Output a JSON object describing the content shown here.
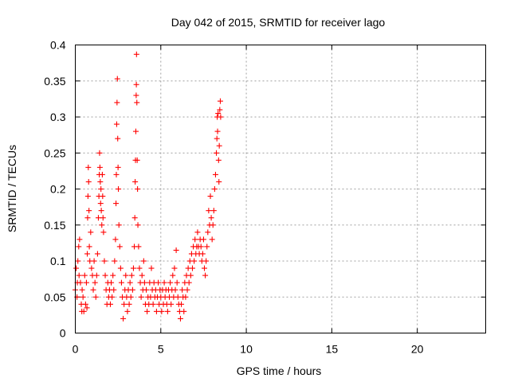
{
  "chart_data": {
    "type": "scatter",
    "title": "Day 042 of 2015, SRMTID for receiver lago",
    "xlabel": "GPS time / hours",
    "ylabel": "SRMTID / TECUs",
    "xlim": [
      0,
      24
    ],
    "ylim": [
      0,
      0.4
    ],
    "xticks": [
      0,
      5,
      10,
      15,
      20
    ],
    "xtick_labels": [
      "0",
      "5",
      "10",
      "15",
      "20"
    ],
    "yticks": [
      0,
      0.05,
      0.1,
      0.15,
      0.2,
      0.25,
      0.3,
      0.35,
      0.4
    ],
    "ytick_labels": [
      "0",
      "0.05",
      "0.1",
      "0.15",
      "0.2",
      "0.25",
      "0.3",
      "0.35",
      "0.4"
    ],
    "grid": true,
    "marker": "+",
    "color": "#ff0000",
    "series": [
      {
        "name": "SRMTID",
        "points": [
          [
            0.0,
            0.06
          ],
          [
            0.05,
            0.09
          ],
          [
            0.1,
            0.05
          ],
          [
            0.12,
            0.07
          ],
          [
            0.15,
            0.1
          ],
          [
            0.2,
            0.12
          ],
          [
            0.22,
            0.08
          ],
          [
            0.25,
            0.13
          ],
          [
            0.3,
            0.07
          ],
          [
            0.35,
            0.04
          ],
          [
            0.38,
            0.03
          ],
          [
            0.4,
            0.06
          ],
          [
            0.45,
            0.05
          ],
          [
            0.5,
            0.03
          ],
          [
            0.55,
            0.08
          ],
          [
            0.6,
            0.04
          ],
          [
            0.65,
            0.07
          ],
          [
            0.68,
            0.035
          ],
          [
            0.7,
            0.11
          ],
          [
            0.72,
            0.16
          ],
          [
            0.74,
            0.19
          ],
          [
            0.76,
            0.23
          ],
          [
            0.78,
            0.21
          ],
          [
            0.8,
            0.17
          ],
          [
            0.82,
            0.12
          ],
          [
            0.85,
            0.1
          ],
          [
            0.9,
            0.14
          ],
          [
            0.95,
            0.09
          ],
          [
            1.0,
            0.08
          ],
          [
            1.05,
            0.06
          ],
          [
            1.1,
            0.1
          ],
          [
            1.15,
            0.07
          ],
          [
            1.2,
            0.05
          ],
          [
            1.25,
            0.08
          ],
          [
            1.3,
            0.11
          ],
          [
            1.35,
            0.16
          ],
          [
            1.38,
            0.19
          ],
          [
            1.4,
            0.22
          ],
          [
            1.42,
            0.25
          ],
          [
            1.44,
            0.23
          ],
          [
            1.46,
            0.21
          ],
          [
            1.48,
            0.18
          ],
          [
            1.5,
            0.2
          ],
          [
            1.52,
            0.17
          ],
          [
            1.55,
            0.15
          ],
          [
            1.58,
            0.22
          ],
          [
            1.6,
            0.19
          ],
          [
            1.62,
            0.16
          ],
          [
            1.65,
            0.14
          ],
          [
            1.7,
            0.1
          ],
          [
            1.75,
            0.08
          ],
          [
            1.8,
            0.06
          ],
          [
            1.85,
            0.04
          ],
          [
            1.9,
            0.07
          ],
          [
            1.95,
            0.05
          ],
          [
            2.0,
            0.06
          ],
          [
            2.05,
            0.04
          ],
          [
            2.1,
            0.07
          ],
          [
            2.15,
            0.05
          ],
          [
            2.2,
            0.08
          ],
          [
            2.25,
            0.06
          ],
          [
            2.3,
            0.1
          ],
          [
            2.35,
            0.13
          ],
          [
            2.38,
            0.18
          ],
          [
            2.4,
            0.22
          ],
          [
            2.42,
            0.29
          ],
          [
            2.44,
            0.32
          ],
          [
            2.46,
            0.353
          ],
          [
            2.48,
            0.27
          ],
          [
            2.5,
            0.23
          ],
          [
            2.52,
            0.2
          ],
          [
            2.55,
            0.15
          ],
          [
            2.6,
            0.12
          ],
          [
            2.65,
            0.09
          ],
          [
            2.7,
            0.07
          ],
          [
            2.75,
            0.05
          ],
          [
            2.8,
            0.02
          ],
          [
            2.85,
            0.04
          ],
          [
            2.9,
            0.06
          ],
          [
            2.95,
            0.08
          ],
          [
            3.0,
            0.05
          ],
          [
            3.05,
            0.03
          ],
          [
            3.1,
            0.06
          ],
          [
            3.15,
            0.04
          ],
          [
            3.2,
            0.07
          ],
          [
            3.25,
            0.05
          ],
          [
            3.3,
            0.08
          ],
          [
            3.35,
            0.06
          ],
          [
            3.4,
            0.09
          ],
          [
            3.45,
            0.12
          ],
          [
            3.48,
            0.16
          ],
          [
            3.5,
            0.21
          ],
          [
            3.52,
            0.24
          ],
          [
            3.54,
            0.28
          ],
          [
            3.56,
            0.33
          ],
          [
            3.57,
            0.345
          ],
          [
            3.58,
            0.387
          ],
          [
            3.6,
            0.32
          ],
          [
            3.62,
            0.24
          ],
          [
            3.64,
            0.2
          ],
          [
            3.66,
            0.15
          ],
          [
            3.7,
            0.12
          ],
          [
            3.75,
            0.09
          ],
          [
            3.8,
            0.07
          ],
          [
            3.85,
            0.05
          ],
          [
            3.9,
            0.08
          ],
          [
            3.95,
            0.06
          ],
          [
            4.0,
            0.1
          ],
          [
            4.05,
            0.07
          ],
          [
            4.1,
            0.04
          ],
          [
            4.15,
            0.06
          ],
          [
            4.2,
            0.03
          ],
          [
            4.25,
            0.05
          ],
          [
            4.3,
            0.04
          ],
          [
            4.35,
            0.07
          ],
          [
            4.4,
            0.05
          ],
          [
            4.45,
            0.09
          ],
          [
            4.5,
            0.06
          ],
          [
            4.55,
            0.04
          ],
          [
            4.6,
            0.07
          ],
          [
            4.65,
            0.05
          ],
          [
            4.7,
            0.06
          ],
          [
            4.75,
            0.03
          ],
          [
            4.8,
            0.05
          ],
          [
            4.85,
            0.07
          ],
          [
            4.9,
            0.04
          ],
          [
            4.95,
            0.06
          ],
          [
            5.0,
            0.05
          ],
          [
            5.05,
            0.03
          ],
          [
            5.1,
            0.06
          ],
          [
            5.15,
            0.04
          ],
          [
            5.2,
            0.07
          ],
          [
            5.25,
            0.05
          ],
          [
            5.3,
            0.06
          ],
          [
            5.35,
            0.04
          ],
          [
            5.4,
            0.03
          ],
          [
            5.45,
            0.06
          ],
          [
            5.5,
            0.05
          ],
          [
            5.55,
            0.07
          ],
          [
            5.6,
            0.04
          ],
          [
            5.65,
            0.06
          ],
          [
            5.7,
            0.08
          ],
          [
            5.75,
            0.05
          ],
          [
            5.8,
            0.09
          ],
          [
            5.85,
            0.06
          ],
          [
            5.9,
            0.115
          ],
          [
            5.95,
            0.07
          ],
          [
            6.0,
            0.05
          ],
          [
            6.05,
            0.04
          ],
          [
            6.1,
            0.03
          ],
          [
            6.15,
            0.02
          ],
          [
            6.2,
            0.04
          ],
          [
            6.25,
            0.06
          ],
          [
            6.3,
            0.05
          ],
          [
            6.35,
            0.03
          ],
          [
            6.4,
            0.07
          ],
          [
            6.45,
            0.05
          ],
          [
            6.5,
            0.08
          ],
          [
            6.55,
            0.06
          ],
          [
            6.6,
            0.09
          ],
          [
            6.65,
            0.07
          ],
          [
            6.7,
            0.1
          ],
          [
            6.75,
            0.08
          ],
          [
            6.8,
            0.11
          ],
          [
            6.85,
            0.09
          ],
          [
            6.9,
            0.12
          ],
          [
            6.95,
            0.1
          ],
          [
            7.0,
            0.13
          ],
          [
            7.05,
            0.11
          ],
          [
            7.1,
            0.12
          ],
          [
            7.15,
            0.14
          ],
          [
            7.2,
            0.12
          ],
          [
            7.25,
            0.11
          ],
          [
            7.3,
            0.13
          ],
          [
            7.35,
            0.12
          ],
          [
            7.4,
            0.1
          ],
          [
            7.45,
            0.11
          ],
          [
            7.5,
            0.13
          ],
          [
            7.55,
            0.09
          ],
          [
            7.6,
            0.08
          ],
          [
            7.65,
            0.1
          ],
          [
            7.7,
            0.12
          ],
          [
            7.75,
            0.14
          ],
          [
            7.8,
            0.17
          ],
          [
            7.85,
            0.15
          ],
          [
            7.9,
            0.19
          ],
          [
            7.95,
            0.16
          ],
          [
            8.0,
            0.13
          ],
          [
            8.05,
            0.15
          ],
          [
            8.1,
            0.17
          ],
          [
            8.15,
            0.2
          ],
          [
            8.2,
            0.22
          ],
          [
            8.25,
            0.25
          ],
          [
            8.28,
            0.27
          ],
          [
            8.3,
            0.3
          ],
          [
            8.32,
            0.28
          ],
          [
            8.35,
            0.305
          ],
          [
            8.38,
            0.24
          ],
          [
            8.4,
            0.21
          ],
          [
            8.42,
            0.26
          ],
          [
            8.45,
            0.31
          ],
          [
            8.48,
            0.322
          ],
          [
            8.5,
            0.3
          ]
        ]
      }
    ]
  }
}
